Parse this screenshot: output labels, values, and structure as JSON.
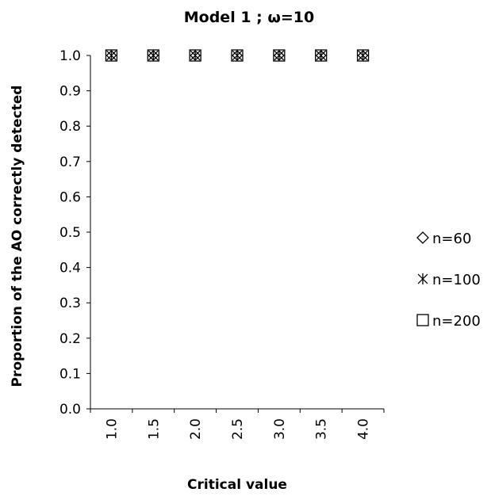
{
  "chart_data": {
    "type": "scatter",
    "title": "Model 1 ; ω=10",
    "xlabel": "Critical value",
    "ylabel": "Proportion of the AO correctly detected",
    "categories": [
      "1.0",
      "1.5",
      "2.0",
      "2.5",
      "3.0",
      "3.5",
      "4.0"
    ],
    "x": [
      1.0,
      1.5,
      2.0,
      2.5,
      3.0,
      3.5,
      4.0
    ],
    "ylim": [
      0.0,
      1.0
    ],
    "yticks": [
      "0.0",
      "0.1",
      "0.2",
      "0.3",
      "0.4",
      "0.5",
      "0.6",
      "0.7",
      "0.8",
      "0.9",
      "1.0"
    ],
    "grid": false,
    "legend_position": "right",
    "series": [
      {
        "name": "n=60",
        "marker": "diamond",
        "symbol": "◇",
        "values": [
          1.0,
          1.0,
          1.0,
          1.0,
          1.0,
          1.0,
          1.0
        ]
      },
      {
        "name": "n=100",
        "marker": "asterisk",
        "symbol": "✳",
        "values": [
          1.0,
          1.0,
          1.0,
          1.0,
          1.0,
          1.0,
          1.0
        ]
      },
      {
        "name": "n=200",
        "marker": "square",
        "symbol": "□",
        "values": [
          1.0,
          1.0,
          1.0,
          1.0,
          1.0,
          1.0,
          1.0
        ]
      }
    ],
    "colors": {
      "marker": "#000000",
      "axis": "#000000"
    }
  }
}
